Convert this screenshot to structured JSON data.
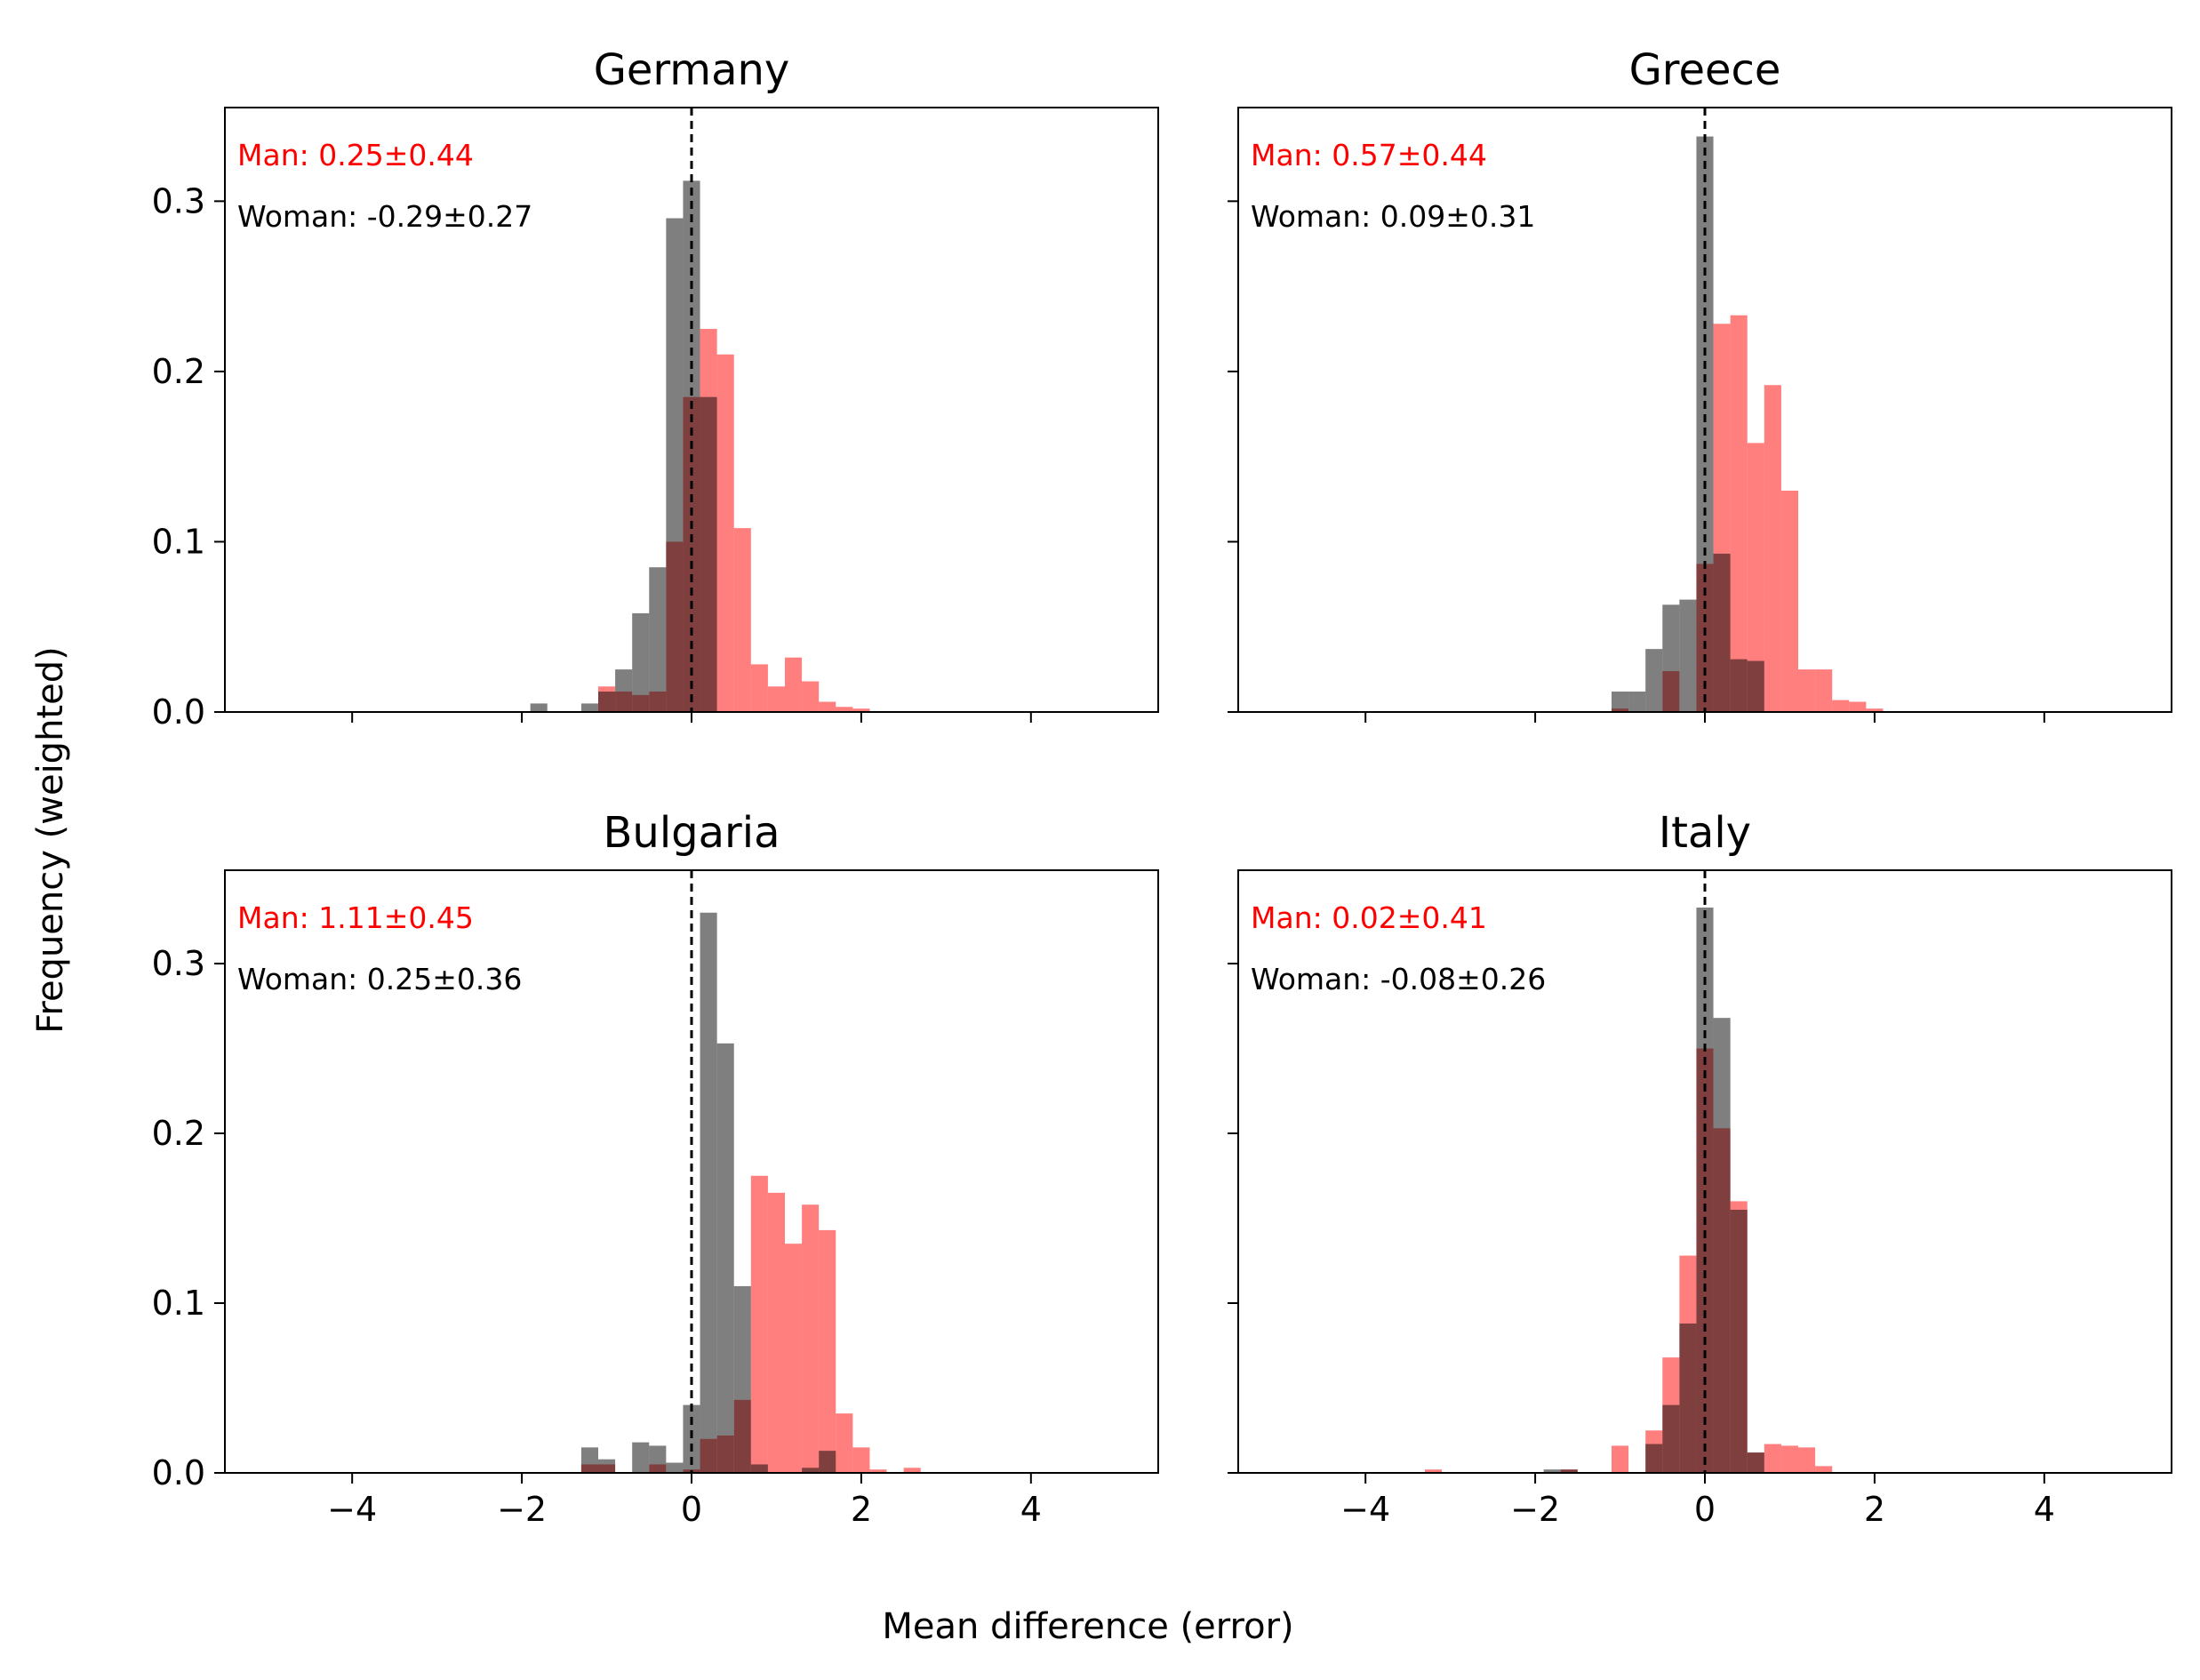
{
  "figure": {
    "xlabel": "Mean difference (error)",
    "ylabel": "Frequency (weighted)"
  },
  "colors": {
    "man": "#ff0000",
    "woman": "#000000",
    "overlap": "#7f0000",
    "reference_line": "#000000"
  },
  "chart_data": [
    {
      "type": "histogram",
      "title": "Germany",
      "xlim": [
        -5.5,
        5.5
      ],
      "ylim": [
        0,
        0.355
      ],
      "xticks": [
        -4,
        -2,
        0,
        2,
        4
      ],
      "xtick_labels": [
        "−4",
        "−2",
        "0",
        "2",
        "4"
      ],
      "yticks": [
        0.0,
        0.1,
        0.2,
        0.3
      ],
      "ytick_labels": [
        "0.0",
        "0.1",
        "0.2",
        "0.3"
      ],
      "show_xtick_labels": false,
      "show_ytick_labels": true,
      "reference_line_x": 0,
      "bin_width": 0.2,
      "annotations": {
        "man": "Man: 0.25±0.44",
        "woman": "Woman: -0.29±0.27"
      },
      "series": [
        {
          "name": "Man",
          "color": "#ff0000",
          "opacity": 0.5,
          "bins": [
            [
              -1.1,
              0.015
            ],
            [
              -0.9,
              0.012
            ],
            [
              -0.7,
              0.01
            ],
            [
              -0.5,
              0.012
            ],
            [
              -0.3,
              0.1
            ],
            [
              -0.1,
              0.185
            ],
            [
              0.1,
              0.225
            ],
            [
              0.3,
              0.21
            ],
            [
              0.5,
              0.108
            ],
            [
              0.7,
              0.028
            ],
            [
              0.9,
              0.015
            ],
            [
              1.1,
              0.032
            ],
            [
              1.3,
              0.018
            ],
            [
              1.5,
              0.006
            ],
            [
              1.7,
              0.003
            ],
            [
              1.9,
              0.002
            ]
          ]
        },
        {
          "name": "Woman",
          "color": "#000000",
          "opacity": 0.5,
          "bins": [
            [
              -1.9,
              0.005
            ],
            [
              -1.3,
              0.005
            ],
            [
              -1.1,
              0.012
            ],
            [
              -0.9,
              0.025
            ],
            [
              -0.7,
              0.058
            ],
            [
              -0.5,
              0.085
            ],
            [
              -0.3,
              0.29
            ],
            [
              -0.1,
              0.312
            ],
            [
              0.1,
              0.185
            ]
          ]
        }
      ]
    },
    {
      "type": "histogram",
      "title": "Greece",
      "xlim": [
        -5.5,
        5.5
      ],
      "ylim": [
        0,
        0.355
      ],
      "xticks": [
        -4,
        -2,
        0,
        2,
        4
      ],
      "xtick_labels": [
        "−4",
        "−2",
        "0",
        "2",
        "4"
      ],
      "yticks": [
        0.0,
        0.1,
        0.2,
        0.3
      ],
      "ytick_labels": [
        "0.0",
        "0.1",
        "0.2",
        "0.3"
      ],
      "show_xtick_labels": false,
      "show_ytick_labels": false,
      "reference_line_x": 0,
      "bin_width": 0.2,
      "annotations": {
        "man": "Man: 0.57±0.44",
        "woman": "Woman: 0.09±0.31"
      },
      "series": [
        {
          "name": "Man",
          "color": "#ff0000",
          "opacity": 0.5,
          "bins": [
            [
              -1.1,
              0.002
            ],
            [
              -0.5,
              0.024
            ],
            [
              -0.1,
              0.087
            ],
            [
              0.1,
              0.228
            ],
            [
              0.3,
              0.233
            ],
            [
              0.5,
              0.158
            ],
            [
              0.7,
              0.192
            ],
            [
              0.9,
              0.13
            ],
            [
              1.1,
              0.025
            ],
            [
              1.3,
              0.025
            ],
            [
              1.5,
              0.007
            ],
            [
              1.7,
              0.006
            ],
            [
              1.9,
              0.002
            ]
          ]
        },
        {
          "name": "Woman",
          "color": "#000000",
          "opacity": 0.5,
          "bins": [
            [
              -1.1,
              0.012
            ],
            [
              -0.9,
              0.012
            ],
            [
              -0.7,
              0.037
            ],
            [
              -0.5,
              0.063
            ],
            [
              -0.3,
              0.066
            ],
            [
              -0.1,
              0.338
            ],
            [
              0.1,
              0.093
            ],
            [
              0.3,
              0.031
            ],
            [
              0.5,
              0.03
            ]
          ]
        }
      ]
    },
    {
      "type": "histogram",
      "title": "Bulgaria",
      "xlim": [
        -5.5,
        5.5
      ],
      "ylim": [
        0,
        0.355
      ],
      "xticks": [
        -4,
        -2,
        0,
        2,
        4
      ],
      "xtick_labels": [
        "−4",
        "−2",
        "0",
        "2",
        "4"
      ],
      "yticks": [
        0.0,
        0.1,
        0.2,
        0.3
      ],
      "ytick_labels": [
        "0.0",
        "0.1",
        "0.2",
        "0.3"
      ],
      "show_xtick_labels": true,
      "show_ytick_labels": true,
      "reference_line_x": 0,
      "bin_width": 0.2,
      "annotations": {
        "man": "Man: 1.11±0.45",
        "woman": "Woman: 0.25±0.36"
      },
      "series": [
        {
          "name": "Man",
          "color": "#ff0000",
          "opacity": 0.5,
          "bins": [
            [
              -1.3,
              0.005
            ],
            [
              -1.1,
              0.005
            ],
            [
              -0.5,
              0.005
            ],
            [
              -0.1,
              0.002
            ],
            [
              0.1,
              0.02
            ],
            [
              0.3,
              0.022
            ],
            [
              0.5,
              0.043
            ],
            [
              0.7,
              0.175
            ],
            [
              0.9,
              0.165
            ],
            [
              1.1,
              0.135
            ],
            [
              1.3,
              0.158
            ],
            [
              1.5,
              0.143
            ],
            [
              1.7,
              0.035
            ],
            [
              1.9,
              0.015
            ],
            [
              2.1,
              0.002
            ],
            [
              2.5,
              0.003
            ]
          ]
        },
        {
          "name": "Woman",
          "color": "#000000",
          "opacity": 0.5,
          "bins": [
            [
              -1.3,
              0.015
            ],
            [
              -1.1,
              0.008
            ],
            [
              -0.7,
              0.018
            ],
            [
              -0.5,
              0.016
            ],
            [
              -0.3,
              0.006
            ],
            [
              -0.1,
              0.04
            ],
            [
              0.1,
              0.33
            ],
            [
              0.3,
              0.253
            ],
            [
              0.5,
              0.11
            ],
            [
              0.7,
              0.005
            ],
            [
              1.3,
              0.003
            ],
            [
              1.5,
              0.013
            ]
          ]
        }
      ]
    },
    {
      "type": "histogram",
      "title": "Italy",
      "xlim": [
        -5.5,
        5.5
      ],
      "ylim": [
        0,
        0.355
      ],
      "xticks": [
        -4,
        -2,
        0,
        2,
        4
      ],
      "xtick_labels": [
        "−4",
        "−2",
        "0",
        "2",
        "4"
      ],
      "yticks": [
        0.0,
        0.1,
        0.2,
        0.3
      ],
      "ytick_labels": [
        "0.0",
        "0.1",
        "0.2",
        "0.3"
      ],
      "show_xtick_labels": true,
      "show_ytick_labels": false,
      "reference_line_x": 0,
      "bin_width": 0.2,
      "annotations": {
        "man": "Man: 0.02±0.41",
        "woman": "Woman: -0.08±0.26"
      },
      "series": [
        {
          "name": "Man",
          "color": "#ff0000",
          "opacity": 0.5,
          "bins": [
            [
              -3.3,
              0.002
            ],
            [
              -1.7,
              0.002
            ],
            [
              -1.1,
              0.016
            ],
            [
              -0.7,
              0.025
            ],
            [
              -0.5,
              0.068
            ],
            [
              -0.3,
              0.128
            ],
            [
              -0.1,
              0.25
            ],
            [
              0.1,
              0.203
            ],
            [
              0.3,
              0.16
            ],
            [
              0.5,
              0.012
            ],
            [
              0.7,
              0.017
            ],
            [
              0.9,
              0.016
            ],
            [
              1.1,
              0.015
            ],
            [
              1.3,
              0.004
            ]
          ]
        },
        {
          "name": "Woman",
          "color": "#000000",
          "opacity": 0.5,
          "bins": [
            [
              -1.9,
              0.002
            ],
            [
              -1.7,
              0.002
            ],
            [
              -0.7,
              0.017
            ],
            [
              -0.5,
              0.04
            ],
            [
              -0.3,
              0.088
            ],
            [
              -0.1,
              0.333
            ],
            [
              0.1,
              0.268
            ],
            [
              0.3,
              0.155
            ],
            [
              0.5,
              0.012
            ]
          ]
        }
      ]
    }
  ]
}
